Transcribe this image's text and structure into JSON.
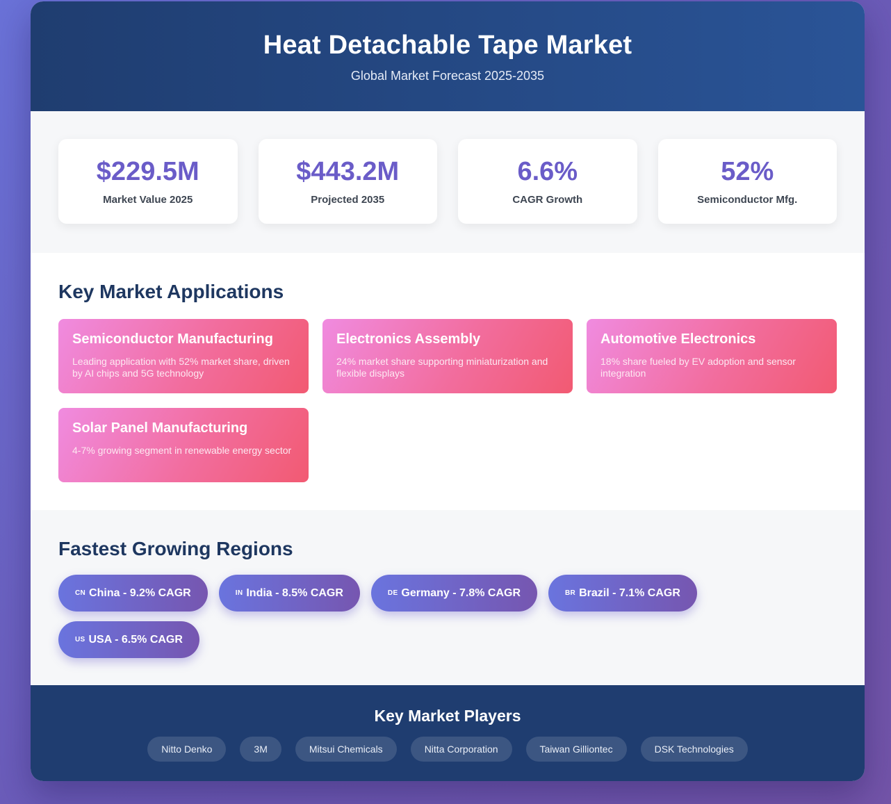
{
  "header": {
    "title": "Heat Detachable Tape Market",
    "subtitle": "Global Market Forecast 2025-2035"
  },
  "stats": [
    {
      "value": "$229.5M",
      "label": "Market Value 2025"
    },
    {
      "value": "$443.2M",
      "label": "Projected 2035"
    },
    {
      "value": "6.6%",
      "label": "CAGR Growth"
    },
    {
      "value": "52%",
      "label": "Semiconductor Mfg."
    }
  ],
  "applications": {
    "heading": "Key Market Applications",
    "items": [
      {
        "title": "Semiconductor Manufacturing",
        "desc": "Leading application with 52% market share, driven by AI chips and 5G technology"
      },
      {
        "title": "Electronics Assembly",
        "desc": "24% market share supporting miniaturization and flexible displays"
      },
      {
        "title": "Automotive Electronics",
        "desc": "18% share fueled by EV adoption and sensor integration"
      },
      {
        "title": "Solar Panel Manufacturing",
        "desc": "4-7% growing segment in renewable energy sector"
      }
    ]
  },
  "regions": {
    "heading": "Fastest Growing Regions",
    "items": [
      {
        "flag": "CN",
        "label": "China - 9.2% CAGR"
      },
      {
        "flag": "IN",
        "label": "India - 8.5% CAGR"
      },
      {
        "flag": "DE",
        "label": "Germany - 7.8% CAGR"
      },
      {
        "flag": "BR",
        "label": "Brazil - 7.1% CAGR"
      },
      {
        "flag": "US",
        "label": "USA - 6.5% CAGR"
      }
    ]
  },
  "players": {
    "heading": "Key Market Players",
    "items": [
      "Nitto Denko",
      "3M",
      "Mitsui Chemicals",
      "Nitta Corporation",
      "Taiwan Gilliontec",
      "DSK Technologies"
    ]
  },
  "colors": {
    "header_bg": "#1f3d70",
    "stat_value": "#6a5cc8",
    "heading": "#1e3760",
    "app_gradient_start": "#f08be0",
    "app_gradient_end": "#f25a72",
    "pill_gradient_start": "#6a74de",
    "pill_gradient_end": "#7656b0"
  }
}
